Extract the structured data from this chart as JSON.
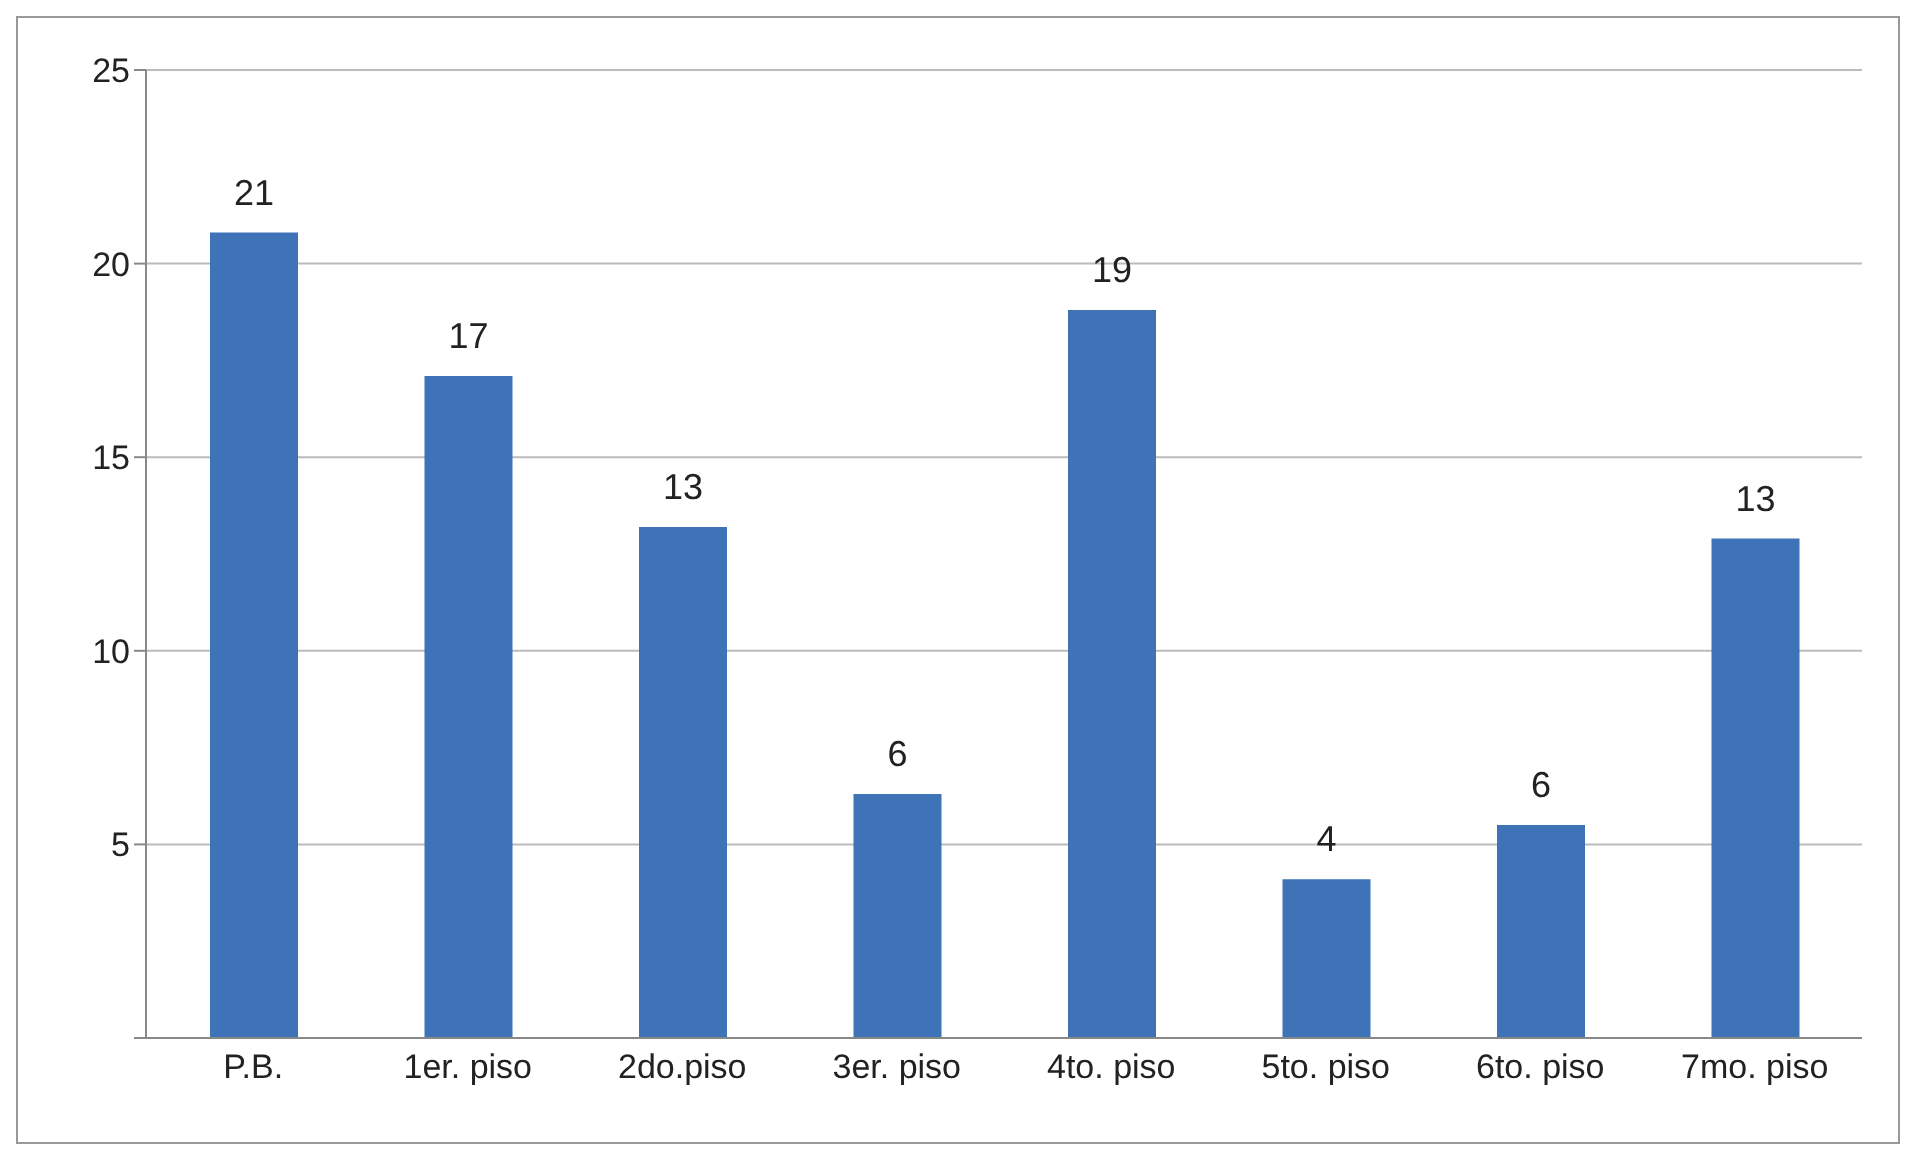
{
  "chart_data": {
    "type": "bar",
    "categories": [
      "P.B.",
      "1er. piso",
      "2do.piso",
      "3er. piso",
      "4to. piso",
      "5to. piso",
      "6to. piso",
      "7mo. piso"
    ],
    "values": [
      20.8,
      17.1,
      13.2,
      6.3,
      18.8,
      4.1,
      5.5,
      12.9
    ],
    "value_labels": [
      "21",
      "17",
      "13",
      "6",
      "19",
      "4",
      "6",
      "13"
    ],
    "color": "#3f73b8",
    "ylim": [
      0,
      25
    ],
    "yticks": [
      {
        "value": 0,
        "label": null
      },
      5,
      10,
      15,
      20,
      25
    ],
    "grid": "y",
    "legend": false
  }
}
